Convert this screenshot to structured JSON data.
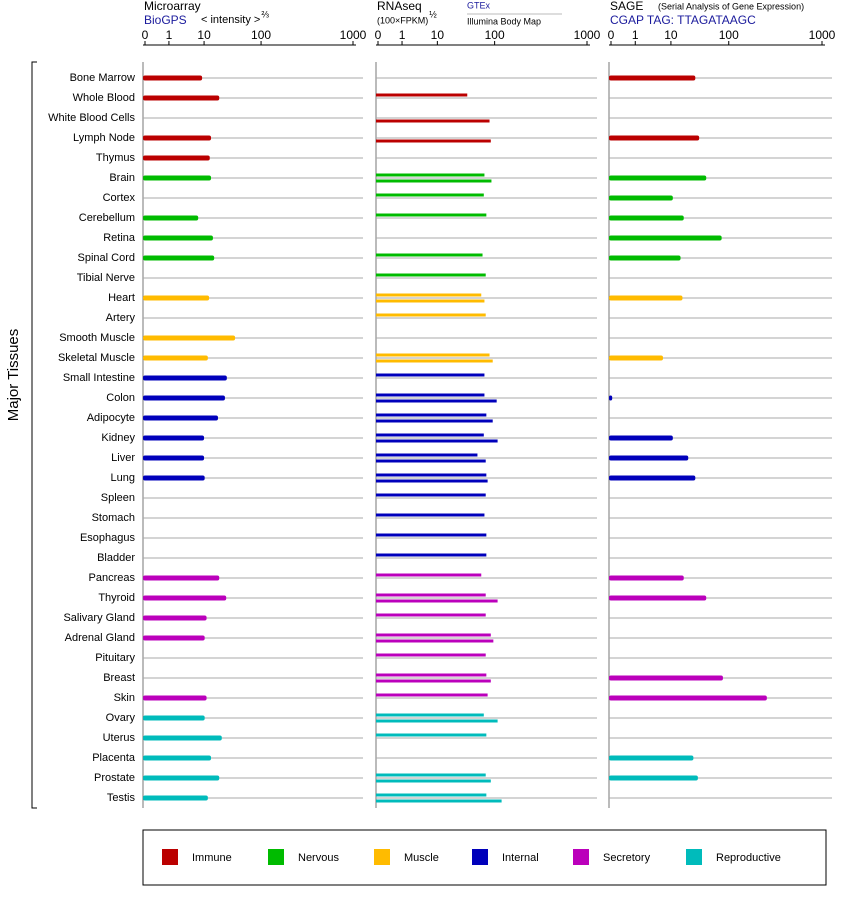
{
  "chart_data": {
    "type": "bar",
    "y_label": "Major Tissues",
    "categories": [
      "Bone Marrow",
      "Whole Blood",
      "White Blood Cells",
      "Lymph Node",
      "Thymus",
      "Brain",
      "Cortex",
      "Cerebellum",
      "Retina",
      "Spinal Cord",
      "Tibial Nerve",
      "Heart",
      "Artery",
      "Smooth Muscle",
      "Skeletal Muscle",
      "Small Intestine",
      "Colon",
      "Adipocyte",
      "Kidney",
      "Liver",
      "Lung",
      "Spleen",
      "Stomach",
      "Esophagus",
      "Bladder",
      "Pancreas",
      "Thyroid",
      "Salivary Gland",
      "Adrenal Gland",
      "Pituitary",
      "Breast",
      "Skin",
      "Ovary",
      "Uterus",
      "Placenta",
      "Prostate",
      "Testis"
    ],
    "category_group": [
      0,
      0,
      0,
      0,
      0,
      1,
      1,
      1,
      1,
      1,
      1,
      2,
      2,
      2,
      2,
      3,
      3,
      3,
      3,
      3,
      3,
      3,
      3,
      3,
      3,
      4,
      4,
      4,
      4,
      4,
      4,
      4,
      5,
      5,
      5,
      5,
      5
    ],
    "legend": [
      {
        "name": "Immune",
        "color": "#bb0000"
      },
      {
        "name": "Nervous",
        "color": "#00bb00"
      },
      {
        "name": "Muscle",
        "color": "#ffbb00"
      },
      {
        "name": "Internal",
        "color": "#0000bb"
      },
      {
        "name": "Secretory",
        "color": "#bb00bb"
      },
      {
        "name": "Reproductive",
        "color": "#00bbbb"
      }
    ],
    "panels": [
      {
        "title": "Microarray",
        "subtitle": "BioGPS",
        "scale_label": "< intensity >",
        "scale_exp": "⅔",
        "xlim": [
          0,
          1000
        ],
        "xticks": [
          0,
          1,
          10,
          100,
          1000
        ],
        "series": [
          {
            "values": [
              9.5,
              34,
              null,
              21,
              19,
              21,
              null,
              8.5,
              24,
              26,
              null,
              18,
              null,
              59,
              16,
              46,
              43,
              32,
              10,
              10,
              11,
              null,
              null,
              null,
              null,
              34,
              45,
              14,
              11,
              null,
              null,
              14,
              11,
              38,
              21,
              34,
              16
            ]
          }
        ]
      },
      {
        "title": "RNAseq",
        "scale_label": "(100×FPKM)",
        "scale_exp": "½",
        "xlim": [
          0,
          1000
        ],
        "xticks": [
          0,
          1,
          10,
          100,
          1000
        ],
        "series": [
          {
            "name": "GTEx",
            "values": [
              null,
              57,
              null,
              null,
              null,
              84,
              83,
              87,
              null,
              81,
              86,
              79,
              86,
              null,
              92,
              84,
              84,
              87,
              83,
              73,
              87,
              86,
              84,
              87,
              87,
              79,
              86,
              86,
              94,
              86,
              87,
              89,
              83,
              87,
              null,
              86,
              87
            ]
          },
          {
            "name": "Illumina Body Map",
            "values": [
              null,
              null,
              92,
              94,
              null,
              95,
              null,
              null,
              null,
              null,
              null,
              84,
              null,
              null,
              97,
              null,
              120,
              97,
              129,
              86,
              89,
              null,
              null,
              null,
              null,
              null,
              129,
              null,
              98,
              null,
              94,
              null,
              129,
              null,
              null,
              94,
              168
            ]
          }
        ]
      },
      {
        "title": "SAGE",
        "note": "(Serial Analysis of Gene Expression)",
        "subtitle": "CGAP TAG: TTAGATAAGC",
        "xlim": [
          0,
          1000
        ],
        "xticks": [
          0,
          1,
          10,
          100,
          1000
        ],
        "series": [
          {
            "values": [
              48,
              null,
              null,
              54,
              null,
              65,
              13,
              30,
              89,
              25,
              null,
              28,
              null,
              null,
              8,
              null,
              0.05,
              null,
              13,
              37,
              48,
              null,
              null,
              null,
              null,
              30,
              65,
              null,
              null,
              null,
              91,
              468,
              null,
              null,
              45,
              52,
              null
            ]
          }
        ]
      }
    ]
  }
}
